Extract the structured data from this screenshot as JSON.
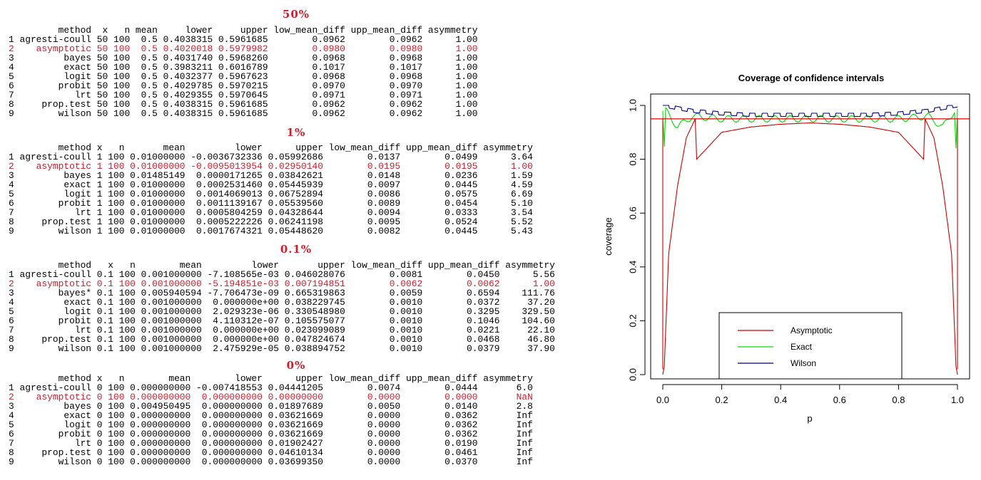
{
  "tables": [
    {
      "title": "50%",
      "columns": [
        "method",
        "x",
        "n",
        "mean",
        "lower",
        "upper",
        "low_mean_diff",
        "upp_mean_diff",
        "asymmetry"
      ],
      "highlight_row": 2,
      "rows": [
        [
          "1",
          "agresti-coull",
          "50",
          "100",
          "0.5",
          "0.4038315",
          "0.5961685",
          "0.0962",
          "0.0962",
          "1.00"
        ],
        [
          "2",
          "asymptotic",
          "50",
          "100",
          "0.5",
          "0.4020018",
          "0.5979982",
          "0.0980",
          "0.0980",
          "1.00"
        ],
        [
          "3",
          "bayes",
          "50",
          "100",
          "0.5",
          "0.4031740",
          "0.5968260",
          "0.0968",
          "0.0968",
          "1.00"
        ],
        [
          "4",
          "exact",
          "50",
          "100",
          "0.5",
          "0.3983211",
          "0.6016789",
          "0.1017",
          "0.1017",
          "1.00"
        ],
        [
          "5",
          "logit",
          "50",
          "100",
          "0.5",
          "0.4032377",
          "0.5967623",
          "0.0968",
          "0.0968",
          "1.00"
        ],
        [
          "6",
          "probit",
          "50",
          "100",
          "0.5",
          "0.4029785",
          "0.5970215",
          "0.0970",
          "0.0970",
          "1.00"
        ],
        [
          "7",
          "lrt",
          "50",
          "100",
          "0.5",
          "0.4029355",
          "0.5970645",
          "0.0971",
          "0.0971",
          "1.00"
        ],
        [
          "8",
          "prop.test",
          "50",
          "100",
          "0.5",
          "0.4038315",
          "0.5961685",
          "0.0962",
          "0.0962",
          "1.00"
        ],
        [
          "9",
          "wilson",
          "50",
          "100",
          "0.5",
          "0.4038315",
          "0.5961685",
          "0.0962",
          "0.0962",
          "1.00"
        ]
      ]
    },
    {
      "title": "1%",
      "columns": [
        "method",
        "x",
        "n",
        "mean",
        "lower",
        "upper",
        "low_mean_diff",
        "upp_mean_diff",
        "asymmetry"
      ],
      "highlight_row": 2,
      "rows": [
        [
          "1",
          "agresti-coull",
          "1",
          "100",
          "0.01000000",
          "-0.0036732336",
          "0.05992686",
          "0.0137",
          "0.0499",
          "3.64"
        ],
        [
          "2",
          "asymptotic",
          "1",
          "100",
          "0.01000000",
          "-0.0095013954",
          "0.02950140",
          "0.0195",
          "0.0195",
          "1.00"
        ],
        [
          "3",
          "bayes",
          "1",
          "100",
          "0.01485149",
          "0.0000171265",
          "0.03842621",
          "0.0148",
          "0.0236",
          "1.59"
        ],
        [
          "4",
          "exact",
          "1",
          "100",
          "0.01000000",
          "0.0002531460",
          "0.05445939",
          "0.0097",
          "0.0445",
          "4.59"
        ],
        [
          "5",
          "logit",
          "1",
          "100",
          "0.01000000",
          "0.0014069013",
          "0.06752894",
          "0.0086",
          "0.0575",
          "6.69"
        ],
        [
          "6",
          "probit",
          "1",
          "100",
          "0.01000000",
          "0.0011139167",
          "0.05539560",
          "0.0089",
          "0.0454",
          "5.10"
        ],
        [
          "7",
          "lrt",
          "1",
          "100",
          "0.01000000",
          "0.0005804259",
          "0.04328644",
          "0.0094",
          "0.0333",
          "3.54"
        ],
        [
          "8",
          "prop.test",
          "1",
          "100",
          "0.01000000",
          "0.0005222226",
          "0.06241198",
          "0.0095",
          "0.0524",
          "5.52"
        ],
        [
          "9",
          "wilson",
          "1",
          "100",
          "0.01000000",
          "0.0017674321",
          "0.05448620",
          "0.0082",
          "0.0445",
          "5.43"
        ]
      ]
    },
    {
      "title": "0.1%",
      "columns": [
        "method",
        "x",
        "n",
        "mean",
        "lower",
        "upper",
        "low_mean_diff",
        "upp_mean_diff",
        "asymmetry"
      ],
      "highlight_row": 2,
      "rows": [
        [
          "1",
          "agresti-coull",
          "0.1",
          "100",
          "0.001000000",
          "-7.108565e-03",
          "0.046028076",
          "0.0081",
          "0.0450",
          "5.56"
        ],
        [
          "2",
          "asymptotic",
          "0.1",
          "100",
          "0.001000000",
          "-5.194851e-03",
          "0.007194851",
          "0.0062",
          "0.0062",
          "1.00"
        ],
        [
          "3",
          "bayes*",
          "0.1",
          "100",
          "0.005940594",
          "-7.706473e-09",
          "0.665319863",
          "0.0059",
          "0.6594",
          "111.76"
        ],
        [
          "4",
          "exact",
          "0.1",
          "100",
          "0.001000000",
          "0.000000e+00",
          "0.038229745",
          "0.0010",
          "0.0372",
          "37.20"
        ],
        [
          "5",
          "logit",
          "0.1",
          "100",
          "0.001000000",
          "2.029323e-06",
          "0.330548980",
          "0.0010",
          "0.3295",
          "329.50"
        ],
        [
          "6",
          "probit",
          "0.1",
          "100",
          "0.001000000",
          "4.110312e-07",
          "0.105575077",
          "0.0010",
          "0.1046",
          "104.60"
        ],
        [
          "7",
          "lrt",
          "0.1",
          "100",
          "0.001000000",
          "0.000000e+00",
          "0.023099089",
          "0.0010",
          "0.0221",
          "22.10"
        ],
        [
          "8",
          "prop.test",
          "0.1",
          "100",
          "0.001000000",
          "0.000000e+00",
          "0.047824674",
          "0.0010",
          "0.0468",
          "46.80"
        ],
        [
          "9",
          "wilson",
          "0.1",
          "100",
          "0.001000000",
          "2.475929e-05",
          "0.038894752",
          "0.0010",
          "0.0379",
          "37.90"
        ]
      ]
    },
    {
      "title": "0%",
      "columns": [
        "method",
        "x",
        "n",
        "mean",
        "lower",
        "upper",
        "low_mean_diff",
        "upp_mean_diff",
        "asymmetry"
      ],
      "highlight_row": 2,
      "rows": [
        [
          "1",
          "agresti-coull",
          "0",
          "100",
          "0.000000000",
          "-0.007418553",
          "0.04441205",
          "0.0074",
          "0.0444",
          "6.0"
        ],
        [
          "2",
          "asymptotic",
          "0",
          "100",
          "0.000000000",
          "0.000000000",
          "0.00000000",
          "0.0000",
          "0.0000",
          "NaN"
        ],
        [
          "3",
          "bayes",
          "0",
          "100",
          "0.004950495",
          "0.000000000",
          "0.01897689",
          "0.0050",
          "0.0140",
          "2.8"
        ],
        [
          "4",
          "exact",
          "0",
          "100",
          "0.000000000",
          "0.000000000",
          "0.03621669",
          "0.0000",
          "0.0362",
          "Inf"
        ],
        [
          "5",
          "logit",
          "0",
          "100",
          "0.000000000",
          "0.000000000",
          "0.03621669",
          "0.0000",
          "0.0362",
          "Inf"
        ],
        [
          "6",
          "probit",
          "0",
          "100",
          "0.000000000",
          "0.000000000",
          "0.03621669",
          "0.0000",
          "0.0362",
          "Inf"
        ],
        [
          "7",
          "lrt",
          "0",
          "100",
          "0.000000000",
          "0.000000000",
          "0.01902427",
          "0.0000",
          "0.0190",
          "Inf"
        ],
        [
          "8",
          "prop.test",
          "0",
          "100",
          "0.000000000",
          "0.000000000",
          "0.04610134",
          "0.0000",
          "0.0461",
          "Inf"
        ],
        [
          "9",
          "wilson",
          "0",
          "100",
          "0.000000000",
          "0.000000000",
          "0.03699350",
          "0.0000",
          "0.0370",
          "Inf"
        ]
      ]
    }
  ],
  "chart_data": {
    "type": "line",
    "title": "Coverage of confidence intervals",
    "xlabel": "p",
    "ylabel": "coverage",
    "xlim": [
      0,
      1
    ],
    "ylim": [
      0,
      1
    ],
    "xticks": [
      "0.0",
      "0.2",
      "0.4",
      "0.6",
      "0.8",
      "1.0"
    ],
    "yticks": [
      "0.0",
      "0.2",
      "0.4",
      "0.6",
      "0.8",
      "1.0"
    ],
    "grid": false,
    "reference_line": {
      "y": 0.95,
      "color": "#e00000"
    },
    "legend": {
      "position": "bottom-center",
      "entries": [
        {
          "label": "Asymptotic",
          "color": "#cc0000"
        },
        {
          "label": "Exact",
          "color": "#00dd00"
        },
        {
          "label": "Wilson",
          "color": "#00008b"
        }
      ]
    },
    "series": [
      {
        "name": "Asymptotic",
        "color": "#cc0000",
        "x": [
          0.0,
          0.005,
          0.02,
          0.05,
          0.08,
          0.11,
          0.115,
          0.2,
          0.3,
          0.4,
          0.5,
          0.6,
          0.7,
          0.8,
          0.885,
          0.89,
          0.92,
          0.95,
          0.98,
          0.995,
          1.0
        ],
        "y": [
          0.0,
          0.03,
          0.45,
          0.7,
          0.88,
          0.95,
          0.8,
          0.9,
          0.92,
          0.93,
          0.935,
          0.93,
          0.92,
          0.9,
          0.8,
          0.95,
          0.88,
          0.7,
          0.45,
          0.03,
          0.0
        ]
      },
      {
        "name": "Exact",
        "color": "#00dd00",
        "x": [
          0.0,
          0.005,
          0.01,
          0.05,
          0.1,
          0.2,
          0.3,
          0.4,
          0.5,
          0.6,
          0.7,
          0.8,
          0.9,
          0.95,
          0.99,
          0.995,
          1.0
        ],
        "y": [
          0.98,
          0.84,
          0.98,
          0.92,
          0.96,
          0.95,
          0.95,
          0.95,
          0.95,
          0.95,
          0.95,
          0.95,
          0.96,
          0.92,
          0.98,
          0.84,
          0.98
        ]
      },
      {
        "name": "Wilson",
        "color": "#00008b",
        "x": [
          0.0,
          0.05,
          0.1,
          0.2,
          0.3,
          0.4,
          0.5,
          0.6,
          0.7,
          0.8,
          0.9,
          0.95,
          1.0
        ],
        "y": [
          1.0,
          0.99,
          0.98,
          0.97,
          0.965,
          0.965,
          0.965,
          0.965,
          0.965,
          0.97,
          0.98,
          0.99,
          1.0
        ]
      }
    ]
  }
}
